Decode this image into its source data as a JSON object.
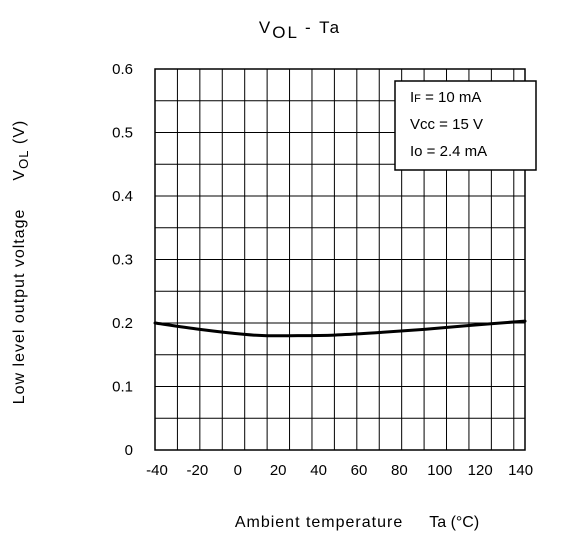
{
  "chart_data": {
    "type": "line",
    "title": {
      "main": "V",
      "sub": "OL",
      "rest": " - T",
      "tail": "a"
    },
    "xlabel": {
      "main": "Ambient temperature",
      "symbol": "Ta (°C)"
    },
    "ylabel": {
      "main": "Low level output voltage",
      "symbol_main": "V",
      "symbol_sub": "OL",
      "symbol_unit": " (V)"
    },
    "xlim": [
      -40,
      140
    ],
    "ylim": [
      0,
      0.6
    ],
    "xticks": [
      -40,
      -20,
      0,
      20,
      40,
      60,
      80,
      100,
      120,
      140
    ],
    "yticks": [
      0,
      0.1,
      0.2,
      0.3,
      0.4,
      0.5,
      0.6
    ],
    "xtick_labels": [
      "-40",
      "-20",
      "0",
      "20",
      "40",
      "60",
      "80",
      "100",
      "120",
      "140"
    ],
    "ytick_labels": [
      "0",
      "0.1",
      "0.2",
      "0.3",
      "0.4",
      "0.5",
      "0.6"
    ],
    "grid": true,
    "grid_x_step": 10,
    "grid_y_step": 0.05,
    "series": [
      {
        "x": [
          -40,
          -20,
          0,
          10,
          20,
          40,
          60,
          80,
          100,
          125
        ],
        "y": [
          0.2,
          0.19,
          0.182,
          0.18,
          0.18,
          0.181,
          0.185,
          0.19,
          0.196,
          0.203
        ]
      }
    ],
    "conditions": {
      "line1": {
        "main": "I",
        "sub": "F",
        "rest": " = 10 mA"
      },
      "line2": "Vcc = 15 V",
      "line3": "Io = 2.4 mA"
    },
    "colors": {
      "line": "#000000",
      "grid": "#000000",
      "background": "#ffffff"
    }
  }
}
